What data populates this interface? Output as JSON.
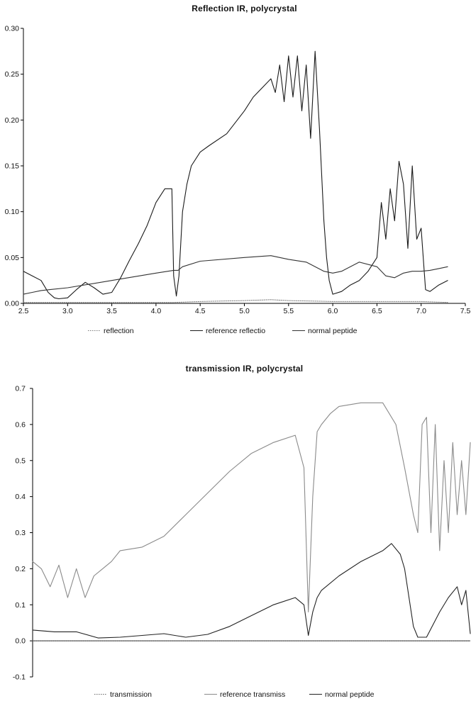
{
  "chart_data": [
    {
      "type": "line",
      "title": "Reflection IR, polycrystal",
      "xlabel": "",
      "ylabel": "",
      "xlim": [
        2.5,
        7.5
      ],
      "ylim": [
        0.0,
        0.3
      ],
      "x_ticks": [
        "2.5",
        "3.0",
        "3.5",
        "4.0",
        "4.5",
        "5.0",
        "5.5",
        "6.0",
        "6.5",
        "7.0",
        "7.5"
      ],
      "y_ticks": [
        "0.00",
        "0.05",
        "0.10",
        "0.15",
        "0.20",
        "0.25",
        "0.30"
      ],
      "grid": false,
      "legend_position": "bottom",
      "series": [
        {
          "name": "reflection",
          "color": "#7a7a7a",
          "style": "dotted",
          "x": [
            2.5,
            2.8,
            3.0,
            3.5,
            4.0,
            4.2,
            4.5,
            5.0,
            5.3,
            5.5,
            6.0,
            6.5,
            7.0,
            7.3
          ],
          "y": [
            0.001,
            0.001,
            0.001,
            0.001,
            0.001,
            0.001,
            0.002,
            0.003,
            0.004,
            0.003,
            0.002,
            0.002,
            0.002,
            0.001
          ]
        },
        {
          "name": "reference reflectio",
          "color": "#1a1a1a",
          "style": "solid",
          "x": [
            2.5,
            2.6,
            2.7,
            2.78,
            2.85,
            2.9,
            3.0,
            3.1,
            3.2,
            3.3,
            3.4,
            3.5,
            3.6,
            3.7,
            3.8,
            3.9,
            4.0,
            4.1,
            4.18,
            4.2,
            4.23,
            4.26,
            4.3,
            4.35,
            4.4,
            4.5,
            4.6,
            4.8,
            5.0,
            5.1,
            5.2,
            5.3,
            5.35,
            5.4,
            5.45,
            5.5,
            5.55,
            5.6,
            5.65,
            5.7,
            5.75,
            5.8,
            5.85,
            5.9,
            5.93,
            5.96,
            6.0,
            6.1,
            6.2,
            6.3,
            6.4,
            6.5,
            6.55,
            6.6,
            6.65,
            6.7,
            6.75,
            6.8,
            6.85,
            6.9,
            6.95,
            7.0,
            7.05,
            7.1,
            7.2,
            7.3
          ],
          "y": [
            0.035,
            0.03,
            0.025,
            0.012,
            0.006,
            0.005,
            0.006,
            0.015,
            0.023,
            0.017,
            0.01,
            0.012,
            0.028,
            0.047,
            0.065,
            0.085,
            0.11,
            0.125,
            0.125,
            0.03,
            0.008,
            0.03,
            0.1,
            0.13,
            0.15,
            0.165,
            0.172,
            0.185,
            0.21,
            0.225,
            0.235,
            0.245,
            0.23,
            0.26,
            0.22,
            0.27,
            0.225,
            0.27,
            0.21,
            0.26,
            0.18,
            0.275,
            0.19,
            0.09,
            0.05,
            0.025,
            0.01,
            0.013,
            0.02,
            0.025,
            0.035,
            0.05,
            0.11,
            0.07,
            0.125,
            0.09,
            0.155,
            0.13,
            0.06,
            0.15,
            0.07,
            0.082,
            0.015,
            0.013,
            0.02,
            0.025
          ]
        },
        {
          "name": "normal peptide",
          "color": "#333333",
          "style": "solid",
          "x": [
            2.5,
            2.6,
            2.7,
            2.8,
            3.0,
            3.5,
            4.0,
            4.2,
            4.25,
            4.3,
            4.5,
            5.0,
            5.3,
            5.5,
            5.7,
            5.8,
            5.9,
            6.0,
            6.1,
            6.3,
            6.5,
            6.6,
            6.7,
            6.8,
            6.9,
            7.0,
            7.1,
            7.2,
            7.3
          ],
          "y": [
            0.01,
            0.012,
            0.014,
            0.015,
            0.017,
            0.025,
            0.033,
            0.036,
            0.036,
            0.04,
            0.046,
            0.05,
            0.052,
            0.048,
            0.045,
            0.04,
            0.035,
            0.033,
            0.035,
            0.045,
            0.04,
            0.03,
            0.028,
            0.033,
            0.035,
            0.035,
            0.036,
            0.038,
            0.04
          ]
        }
      ]
    },
    {
      "type": "line",
      "title": "transmission IR, polycrystal",
      "xlabel": "",
      "ylabel": "",
      "ylim": [
        -0.1,
        0.7
      ],
      "y_ticks": [
        "-0.1",
        "0.0",
        "0.1",
        "0.2",
        "0.3",
        "0.4",
        "0.5",
        "0.6",
        "0.7"
      ],
      "x_ticks": [],
      "grid": false,
      "legend_position": "bottom",
      "series": [
        {
          "name": "transmission",
          "color": "#666666",
          "style": "dotted",
          "x": [
            0,
            1
          ],
          "y": [
            0.0,
            0.0
          ]
        },
        {
          "name": "reference transmiss",
          "color": "#8a8a8a",
          "style": "solid",
          "x": [
            0.0,
            0.02,
            0.04,
            0.06,
            0.08,
            0.1,
            0.12,
            0.14,
            0.16,
            0.18,
            0.2,
            0.25,
            0.3,
            0.35,
            0.4,
            0.45,
            0.5,
            0.55,
            0.6,
            0.62,
            0.63,
            0.64,
            0.65,
            0.66,
            0.68,
            0.7,
            0.75,
            0.8,
            0.83,
            0.85,
            0.87,
            0.88,
            0.89,
            0.9,
            0.91,
            0.92,
            0.93,
            0.94,
            0.95,
            0.96,
            0.97,
            0.98,
            0.99,
            1.0
          ],
          "y": [
            0.22,
            0.2,
            0.15,
            0.21,
            0.12,
            0.2,
            0.12,
            0.18,
            0.2,
            0.22,
            0.25,
            0.26,
            0.29,
            0.35,
            0.41,
            0.47,
            0.52,
            0.55,
            0.57,
            0.48,
            0.08,
            0.4,
            0.58,
            0.6,
            0.63,
            0.65,
            0.66,
            0.66,
            0.6,
            0.48,
            0.35,
            0.3,
            0.6,
            0.62,
            0.3,
            0.6,
            0.25,
            0.5,
            0.3,
            0.55,
            0.35,
            0.5,
            0.35,
            0.55
          ]
        },
        {
          "name": "normal peptide",
          "color": "#222222",
          "style": "solid",
          "x": [
            0.0,
            0.05,
            0.1,
            0.15,
            0.2,
            0.25,
            0.3,
            0.35,
            0.4,
            0.45,
            0.5,
            0.55,
            0.6,
            0.62,
            0.63,
            0.64,
            0.65,
            0.66,
            0.7,
            0.75,
            0.8,
            0.82,
            0.84,
            0.85,
            0.86,
            0.87,
            0.88,
            0.9,
            0.93,
            0.95,
            0.97,
            0.98,
            0.99,
            1.0
          ],
          "y": [
            0.03,
            0.025,
            0.025,
            0.008,
            0.01,
            0.015,
            0.02,
            0.01,
            0.018,
            0.04,
            0.07,
            0.1,
            0.12,
            0.1,
            0.015,
            0.08,
            0.12,
            0.14,
            0.18,
            0.22,
            0.25,
            0.27,
            0.24,
            0.2,
            0.12,
            0.04,
            0.01,
            0.01,
            0.08,
            0.12,
            0.15,
            0.1,
            0.14,
            0.02
          ]
        }
      ]
    }
  ]
}
